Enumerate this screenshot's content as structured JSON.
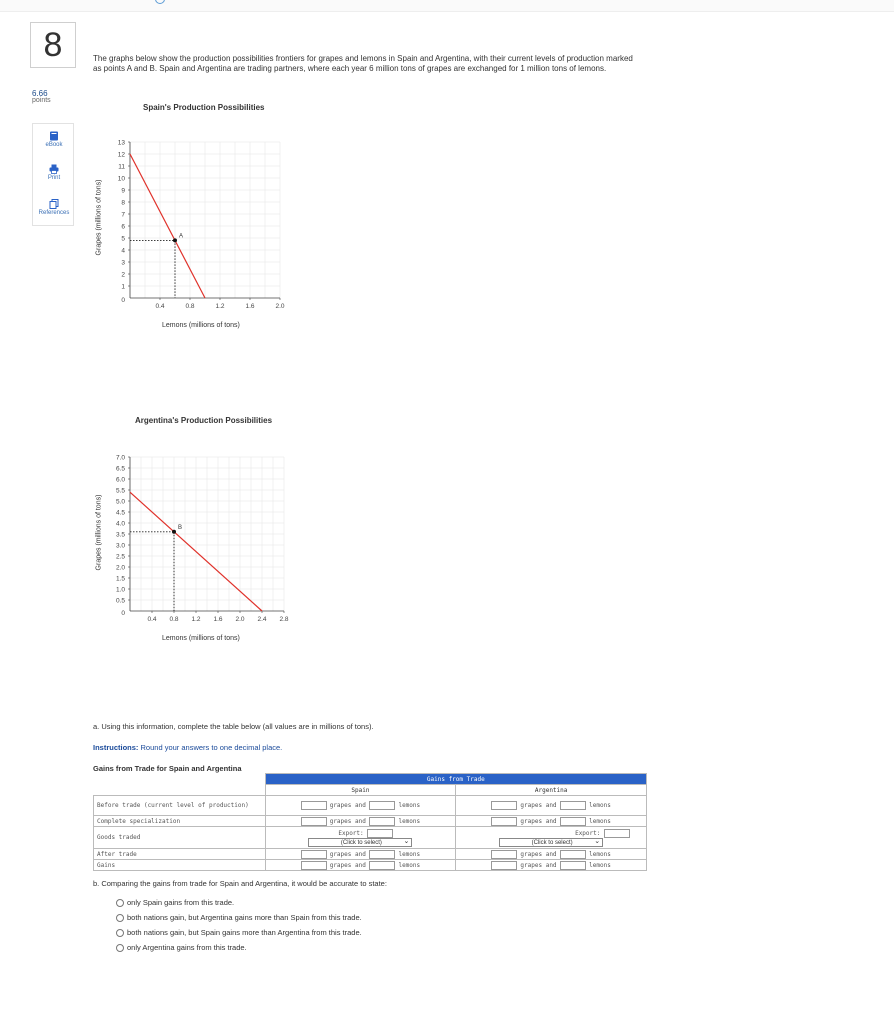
{
  "question": {
    "number": "8",
    "points_value": "6.66",
    "points_label": "points"
  },
  "tools": {
    "ebook": "eBook",
    "print": "Print",
    "references": "References"
  },
  "problem_text": "The graphs below show the production possibilities frontiers for grapes and lemons in Spain and Argentina, with their current levels of production marked as points A and B. Spain and Argentina are trading partners, where each year 6 million tons of grapes are exchanged for 1 million tons of lemons.",
  "chart_data": [
    {
      "type": "line",
      "title": "Spain's Production Possibilities",
      "xlabel": "Lemons (millions of tons)",
      "ylabel": "Grapes (millions of tons)",
      "xlim": [
        0,
        2.0
      ],
      "ylim": [
        0,
        13
      ],
      "x_ticks": [
        "0.4",
        "0.8",
        "1.2",
        "1.6",
        "2.0"
      ],
      "y_ticks": [
        "1",
        "2",
        "3",
        "4",
        "5",
        "6",
        "7",
        "8",
        "9",
        "10",
        "11",
        "12",
        "13"
      ],
      "origin_label": "0",
      "grid": true,
      "series": [
        {
          "points": [
            [
              0,
              12
            ],
            [
              1.0,
              0
            ]
          ],
          "color": "#e0322b"
        }
      ],
      "point": {
        "label": "A",
        "x": 0.6,
        "y": 4.8
      }
    },
    {
      "type": "line",
      "title": "Argentina's Production Possibilities",
      "xlabel": "Lemons (millions of tons)",
      "ylabel": "Grapes (millions of tons)",
      "xlim": [
        0,
        2.8
      ],
      "ylim": [
        0,
        7.0
      ],
      "x_ticks": [
        "0.4",
        "0.8",
        "1.2",
        "1.6",
        "2.0",
        "2.4",
        "2.8"
      ],
      "y_ticks": [
        "0.5",
        "1.0",
        "1.5",
        "2.0",
        "2.5",
        "3.0",
        "3.5",
        "4.0",
        "4.5",
        "5.0",
        "5.5",
        "6.0",
        "6.5",
        "7.0"
      ],
      "origin_label": "0",
      "grid": true,
      "series": [
        {
          "points": [
            [
              0,
              5.4
            ],
            [
              2.4,
              0
            ]
          ],
          "color": "#e0322b"
        }
      ],
      "point": {
        "label": "B",
        "x": 0.8,
        "y": 3.6
      }
    }
  ],
  "part_a": {
    "text": "a. Using this information, complete the table below (all values are in millions of tons).",
    "instructions_label": "Instructions:",
    "instructions_text": "Round your answers to one decimal place.",
    "table_title": "Gains from Trade for Spain and Argentina",
    "table": {
      "header": "Gains from Trade",
      "col_spain": "Spain",
      "col_argentina": "Argentina",
      "rows": {
        "before": "Before trade (current level of production)",
        "complete": "Complete specialization",
        "traded": "Goods traded",
        "after": "After trade",
        "gains": "Gains"
      },
      "grapes_and": "grapes and",
      "lemons": "lemons",
      "export_label": "Export:",
      "select_placeholder": "(Click to select)"
    }
  },
  "part_b": {
    "text": "b. Comparing the gains from trade for Spain and Argentina, it would be accurate to state:",
    "options": [
      "only Spain gains from this trade.",
      "both nations gain, but Argentina gains more than Spain from this trade.",
      "both nations gain, but Spain gains more than Argentina from this trade.",
      "only Argentina gains from this trade."
    ]
  }
}
